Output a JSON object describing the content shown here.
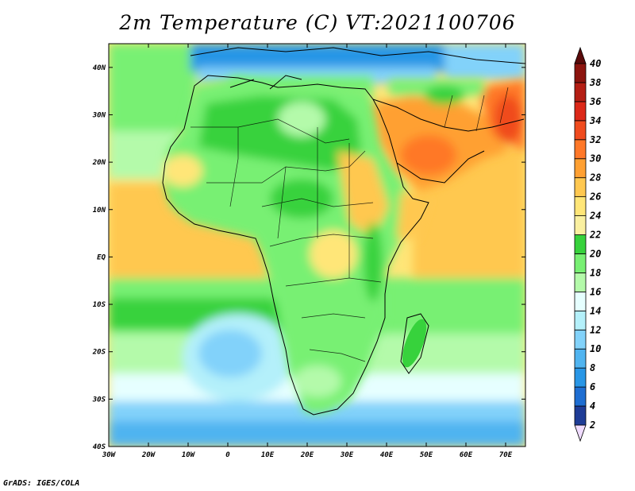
{
  "title": "2m Temperature (C) VT:2021100706",
  "credit": "GrADS: IGES/COLA",
  "map": {
    "projection": "lat-lon",
    "lon_range": [
      -30,
      75
    ],
    "lat_range": [
      -40,
      45
    ],
    "x_ticks": [
      {
        "value": -30,
        "label": "30W"
      },
      {
        "value": -20,
        "label": "20W"
      },
      {
        "value": -10,
        "label": "10W"
      },
      {
        "value": 0,
        "label": "0"
      },
      {
        "value": 10,
        "label": "10E"
      },
      {
        "value": 20,
        "label": "20E"
      },
      {
        "value": 30,
        "label": "30E"
      },
      {
        "value": 40,
        "label": "40E"
      },
      {
        "value": 50,
        "label": "50E"
      },
      {
        "value": 60,
        "label": "60E"
      },
      {
        "value": 70,
        "label": "70E"
      }
    ],
    "y_ticks": [
      {
        "value": 40,
        "label": "40N"
      },
      {
        "value": 30,
        "label": "30N"
      },
      {
        "value": 20,
        "label": "20N"
      },
      {
        "value": 10,
        "label": "10N"
      },
      {
        "value": 0,
        "label": "EQ"
      },
      {
        "value": -10,
        "label": "10S"
      },
      {
        "value": -20,
        "label": "20S"
      },
      {
        "value": -30,
        "label": "30S"
      },
      {
        "value": -40,
        "label": "40S"
      }
    ]
  },
  "colorbar": {
    "levels": [
      2,
      4,
      6,
      8,
      10,
      12,
      14,
      16,
      18,
      20,
      22,
      24,
      26,
      28,
      30,
      32,
      34,
      36,
      38,
      40
    ],
    "colors": [
      "#f0dcff",
      "#1e3c96",
      "#1e6ed2",
      "#2896e6",
      "#50b4f0",
      "#82d2fa",
      "#b4f0fa",
      "#e6ffff",
      "#b4faaa",
      "#78f073",
      "#37d23c",
      "#faf0a0",
      "#ffe678",
      "#ffc850",
      "#ffa032",
      "#ff7828",
      "#f04b1e",
      "#dc2818",
      "#b41e14",
      "#8c140e",
      "#5a0a0a"
    ]
  }
}
